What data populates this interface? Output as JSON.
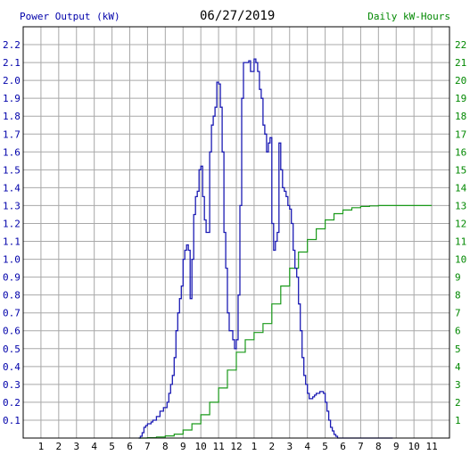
{
  "header": {
    "left_axis_title": "Power Output (kW)",
    "date": "06/27/2019",
    "right_axis_title": "Daily kW-Hours"
  },
  "colors": {
    "power_line": "#1c1cb4",
    "energy_line": "#1a9a1a",
    "left_axis_text": "#0000aa",
    "right_axis_text": "#008800",
    "grid": "#a8a8a8"
  },
  "chart_data": {
    "type": "line",
    "title": "06/27/2019",
    "xlabel": "",
    "ylabel": "Power Output (kW)",
    "y2label": "Daily kW-Hours",
    "xlim": [
      0,
      24
    ],
    "ylim": [
      0,
      2.3
    ],
    "y2lim": [
      0,
      23
    ],
    "grid": true,
    "x_tick_labels": [
      "1",
      "2",
      "3",
      "4",
      "5",
      "6",
      "7",
      "8",
      "9",
      "10",
      "11",
      "12",
      "1",
      "2",
      "3",
      "4",
      "5",
      "6",
      "7",
      "8",
      "9",
      "10",
      "11"
    ],
    "y_tick_labels": [
      "0.1",
      "0.2",
      "0.3",
      "0.4",
      "0.5",
      "0.6",
      "0.7",
      "0.8",
      "0.9",
      "1.0",
      "1.1",
      "1.2",
      "1.3",
      "1.4",
      "1.5",
      "1.6",
      "1.7",
      "1.8",
      "1.9",
      "2.0",
      "2.1",
      "2.2"
    ],
    "y2_tick_labels": [
      "1",
      "2",
      "3",
      "4",
      "5",
      "6",
      "7",
      "8",
      "9",
      "10",
      "11",
      "12",
      "13",
      "14",
      "15",
      "16",
      "17",
      "18",
      "19",
      "20",
      "21",
      "22"
    ],
    "series": [
      {
        "axis": "left",
        "x": [
          6.5,
          6.6,
          6.7,
          6.8,
          6.9,
          7.0,
          7.1,
          7.2,
          7.3,
          7.4,
          7.5,
          7.6,
          7.7,
          7.8,
          7.9,
          8.0,
          8.1,
          8.2,
          8.3,
          8.4,
          8.5,
          8.6,
          8.7,
          8.8,
          8.9,
          9.0,
          9.1,
          9.2,
          9.3,
          9.4,
          9.5,
          9.6,
          9.7,
          9.8,
          9.9,
          10.0,
          10.1,
          10.2,
          10.3,
          10.4,
          10.5,
          10.6,
          10.7,
          10.8,
          10.9,
          11.0,
          11.1,
          11.2,
          11.3,
          11.4,
          11.5,
          11.6,
          11.7,
          11.8,
          11.9,
          12.0,
          12.1,
          12.2,
          12.3,
          12.4,
          12.5,
          12.6,
          12.7,
          12.8,
          12.9,
          13.0,
          13.1,
          13.2,
          13.3,
          13.4,
          13.5,
          13.6,
          13.7,
          13.8,
          13.9,
          14.0,
          14.1,
          14.2,
          14.3,
          14.4,
          14.5,
          14.6,
          14.7,
          14.8,
          14.9,
          15.0,
          15.1,
          15.2,
          15.3,
          15.4,
          15.5,
          15.6,
          15.7,
          15.8,
          15.9,
          16.0,
          16.1,
          16.2,
          16.3,
          16.4,
          16.5,
          16.6,
          16.7,
          16.8,
          16.9,
          17.0,
          17.1,
          17.2,
          17.3,
          17.4,
          17.5,
          17.6,
          17.7,
          17.8,
          17.9,
          18.0,
          18.1,
          18.2,
          18.3,
          18.4,
          18.5,
          18.6,
          18.7,
          18.8,
          18.9,
          19.0,
          19.1,
          19.2,
          19.3,
          19.4,
          19.5,
          19.6,
          19.7,
          19.8,
          19.9,
          20.0,
          20.2,
          20.5,
          20.8
        ],
        "values": [
          0.0,
          0.01,
          0.03,
          0.06,
          0.07,
          0.08,
          0.08,
          0.09,
          0.1,
          0.1,
          0.12,
          0.12,
          0.15,
          0.15,
          0.17,
          0.17,
          0.2,
          0.25,
          0.3,
          0.35,
          0.45,
          0.6,
          0.7,
          0.78,
          0.85,
          1.0,
          1.05,
          1.08,
          1.05,
          0.78,
          1.0,
          1.25,
          1.35,
          1.38,
          1.5,
          1.52,
          1.35,
          1.22,
          1.15,
          1.15,
          1.6,
          1.75,
          1.8,
          1.85,
          1.99,
          1.98,
          1.85,
          1.6,
          1.15,
          0.95,
          0.7,
          0.6,
          0.6,
          0.55,
          0.5,
          0.55,
          0.8,
          1.3,
          1.9,
          2.1,
          2.1,
          2.1,
          2.11,
          2.05,
          2.05,
          2.12,
          2.1,
          2.05,
          1.95,
          1.9,
          1.75,
          1.7,
          1.6,
          1.65,
          1.68,
          1.2,
          1.05,
          1.1,
          1.15,
          1.65,
          1.5,
          1.4,
          1.38,
          1.35,
          1.3,
          1.28,
          1.2,
          1.05,
          0.95,
          0.9,
          0.75,
          0.6,
          0.45,
          0.35,
          0.3,
          0.25,
          0.22,
          0.22,
          0.23,
          0.24,
          0.25,
          0.25,
          0.26,
          0.26,
          0.25,
          0.2,
          0.15,
          0.1,
          0.06,
          0.04,
          0.02,
          0.01,
          0.0,
          0.0,
          0.0,
          0.0,
          0.0,
          0.0,
          0.0,
          0.0,
          0.0,
          0.0,
          0.0,
          0.0,
          0.0,
          0.0,
          0.0,
          0.0,
          0.0,
          0.0,
          0.0,
          0.0,
          0.0,
          0.0,
          0.0,
          0.0,
          0.0,
          0.0,
          0.0
        ]
      },
      {
        "axis": "right",
        "x": [
          6.5,
          7.0,
          7.5,
          8.0,
          8.5,
          9.0,
          9.5,
          10.0,
          10.5,
          11.0,
          11.5,
          12.0,
          12.5,
          13.0,
          13.5,
          14.0,
          14.5,
          15.0,
          15.5,
          16.0,
          16.5,
          17.0,
          17.5,
          18.0,
          18.5,
          19.0,
          19.5,
          20.0,
          21.0,
          22.0,
          23.0
        ],
        "values": [
          0.0,
          0.02,
          0.06,
          0.12,
          0.22,
          0.45,
          0.8,
          1.3,
          2.0,
          2.8,
          3.8,
          4.8,
          5.5,
          5.9,
          6.4,
          7.5,
          8.5,
          9.5,
          10.4,
          11.1,
          11.7,
          12.2,
          12.55,
          12.75,
          12.88,
          12.95,
          12.98,
          13.0,
          13.0,
          13.0,
          13.0
        ]
      }
    ]
  }
}
